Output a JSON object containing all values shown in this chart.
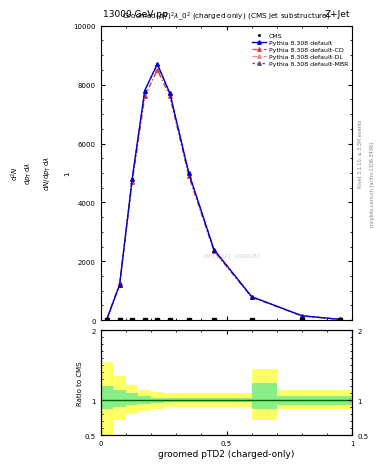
{
  "title_top": "13000 GeV pp",
  "title_right": "Z+Jet",
  "plot_title": "Groomed$(p_T^D)^2\\lambda\\_0^2$ (charged only) (CMS jet substructure)",
  "xlabel": "groomed pTD2 (charged-only)",
  "rivet_label": "Rivet 3.1.10, ≥ 3.3M events",
  "mcplots_label": "mcplots.cern.ch [arXiv:1306.3436]",
  "watermark": "CMS_2021_I1920187",
  "cms_x": [
    0.025,
    0.075,
    0.125,
    0.175,
    0.225,
    0.275,
    0.35,
    0.45,
    0.6,
    0.8,
    0.95
  ],
  "cms_y": [
    0,
    0,
    0,
    0,
    0,
    0,
    0,
    0,
    0,
    0,
    0
  ],
  "pythia_default_x": [
    0.025,
    0.075,
    0.125,
    0.175,
    0.225,
    0.275,
    0.35,
    0.45,
    0.6,
    0.8,
    0.95
  ],
  "pythia_default_y": [
    50,
    1200,
    4800,
    7800,
    8700,
    7700,
    5000,
    2400,
    800,
    150,
    30
  ],
  "pythia_cd_x": [
    0.025,
    0.075,
    0.125,
    0.175,
    0.225,
    0.275,
    0.35,
    0.45,
    0.6,
    0.8,
    0.95
  ],
  "pythia_cd_y": [
    55,
    1250,
    4700,
    7600,
    8500,
    7600,
    4900,
    2350,
    780,
    145,
    28
  ],
  "pythia_dl_x": [
    0.025,
    0.075,
    0.125,
    0.175,
    0.225,
    0.275,
    0.35,
    0.45,
    0.6,
    0.8,
    0.95
  ],
  "pythia_dl_y": [
    55,
    1250,
    4700,
    7600,
    8500,
    7600,
    4900,
    2350,
    780,
    145,
    28
  ],
  "pythia_mbr_x": [
    0.025,
    0.075,
    0.125,
    0.175,
    0.225,
    0.275,
    0.35,
    0.45,
    0.6,
    0.8,
    0.95
  ],
  "pythia_mbr_y": [
    50,
    1200,
    4800,
    7800,
    8700,
    7700,
    5000,
    2400,
    800,
    150,
    30
  ],
  "ratio_x_edges": [
    0.0,
    0.05,
    0.1,
    0.15,
    0.2,
    0.25,
    0.3,
    0.5,
    0.6,
    0.7,
    1.0
  ],
  "ratio_green_lo": [
    0.88,
    0.9,
    0.93,
    0.95,
    0.96,
    0.97,
    0.97,
    0.97,
    0.88,
    0.94
  ],
  "ratio_green_hi": [
    1.2,
    1.15,
    1.1,
    1.06,
    1.04,
    1.03,
    1.03,
    1.03,
    1.25,
    1.06
  ],
  "ratio_yellow_lo": [
    0.5,
    0.72,
    0.8,
    0.85,
    0.88,
    0.9,
    0.9,
    0.9,
    0.72,
    0.88
  ],
  "ratio_yellow_hi": [
    1.55,
    1.35,
    1.22,
    1.15,
    1.12,
    1.1,
    1.1,
    1.1,
    1.45,
    1.15
  ],
  "ylim_main": [
    0,
    10000
  ],
  "ylim_ratio": [
    0.5,
    2.0
  ],
  "xlim": [
    0.0,
    1.0
  ],
  "color_default": "#0000cc",
  "color_cd": "#cc4444",
  "color_dl": "#ee8888",
  "color_mbr": "#6644aa",
  "color_cms": "#000000",
  "yticks_main": [
    0,
    2000,
    4000,
    6000,
    8000,
    10000
  ],
  "ytick_labels_main": [
    "0",
    "2000",
    "4000",
    "6000",
    "8000",
    "10000"
  ],
  "xticks": [
    0.0,
    0.5,
    1.0
  ],
  "xtick_labels": [
    "0",
    "0.5",
    "1"
  ],
  "ylabel_lines": [
    "mathrm d^{2}N",
    "mathrm d p_{T} mathrm d lambda",
    "",
    "mathrm d N / mathrm d p_{T} mathrm d lambda",
    "1"
  ]
}
